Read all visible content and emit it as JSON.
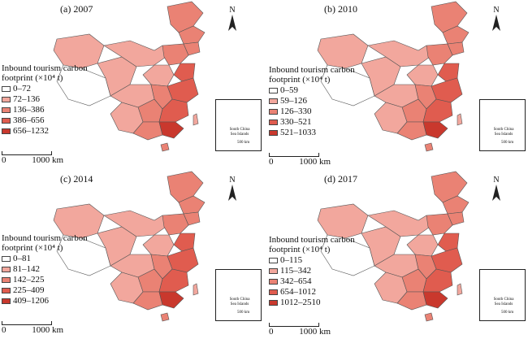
{
  "panels": [
    {
      "id": "a",
      "label": "(a) 2007",
      "legend_title": "Inbound tourism carbon footprint (×10⁴ t)",
      "legend": [
        "0–72",
        "72–136",
        "136–386",
        "386–656",
        "656–1232"
      ]
    },
    {
      "id": "b",
      "label": "(b) 2010",
      "legend_title": "Inbound tourism carbon footprint (×10⁴ t)",
      "legend": [
        "0–59",
        "59–126",
        "126–330",
        "330–521",
        "521–1033"
      ]
    },
    {
      "id": "c",
      "label": "(c) 2014",
      "legend_title": "Inbound tourism carbon footprint (×10⁴ t)",
      "legend": [
        "0–81",
        "81–142",
        "142–225",
        "225–409",
        "409–1206"
      ]
    },
    {
      "id": "d",
      "label": "(d) 2017",
      "legend_title": "Inbound tourism carbon footprint (×10⁴ t)",
      "legend": [
        "0–115",
        "115–342",
        "342–654",
        "654–1012",
        "1012–2510"
      ]
    }
  ],
  "north_label": "N",
  "scale_left": "0",
  "scale_right": "1000 km",
  "inset_label": "South China Sea Islands",
  "inset_scale": "500 km",
  "colors": {
    "class_1": "#ffffff",
    "class_2": "#f2a79d",
    "class_3": "#ea8274",
    "class_4": "#e05c4f",
    "class_5": "#c9382d",
    "border": "#555555"
  }
}
